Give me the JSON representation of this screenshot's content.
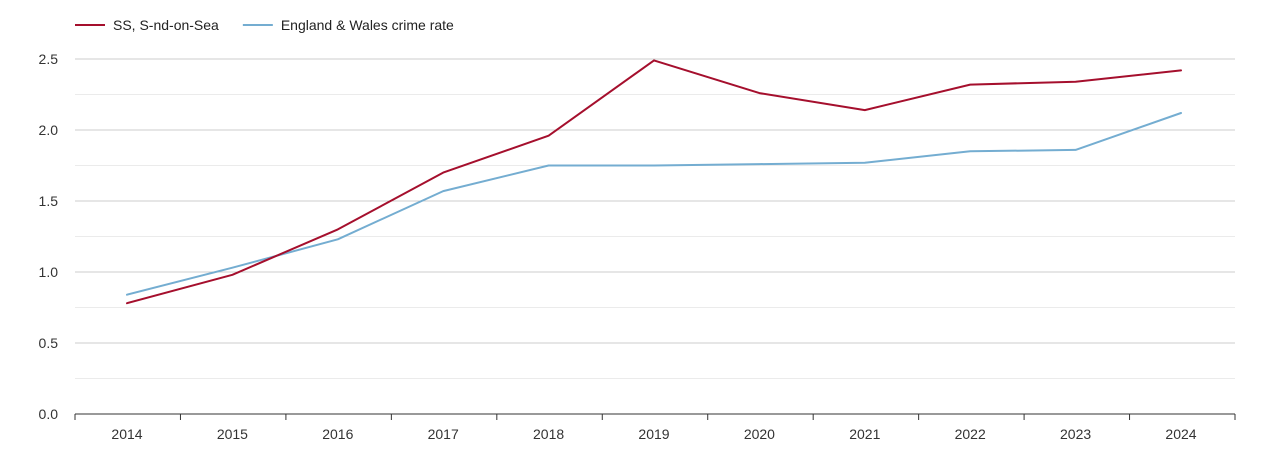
{
  "chart_data": {
    "type": "line",
    "title": "",
    "xlabel": "",
    "ylabel": "",
    "categories": [
      "2014",
      "2015",
      "2016",
      "2017",
      "2018",
      "2019",
      "2020",
      "2021",
      "2022",
      "2023",
      "2024"
    ],
    "ylim": [
      0,
      2.5
    ],
    "yticks": [
      "0.0",
      "0.5",
      "1.0",
      "1.5",
      "2.0",
      "2.5"
    ],
    "grid": true,
    "legend_position": "top-left",
    "series": [
      {
        "name": "SS, S-nd-on-Sea",
        "color": "#a50f2d",
        "values": [
          0.78,
          0.98,
          1.3,
          1.7,
          1.96,
          2.49,
          2.26,
          2.14,
          2.32,
          2.34,
          2.42
        ]
      },
      {
        "name": "England & Wales crime rate",
        "color": "#74add1",
        "values": [
          0.84,
          1.03,
          1.23,
          1.57,
          1.75,
          1.75,
          1.76,
          1.77,
          1.85,
          1.86,
          2.12
        ]
      }
    ]
  }
}
